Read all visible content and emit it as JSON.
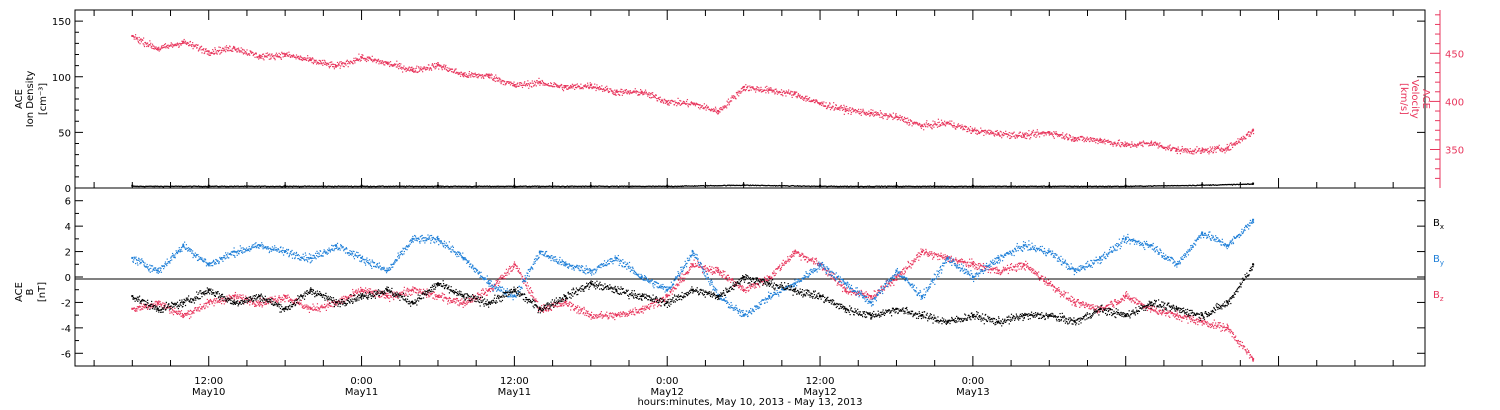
{
  "chart_data": [
    {
      "type": "scatter",
      "panel": "top",
      "ylabel": {
        "line1": "ACE",
        "line2": "Ion Density",
        "unit": "[cm⁻³]"
      },
      "ylabel_right": {
        "line1": "ACE",
        "line2": "Velocity",
        "unit": "[km/s]"
      },
      "ylim": [
        0,
        160
      ],
      "yticks": [
        "0",
        "50",
        "100",
        "150"
      ],
      "ylim_right": [
        310,
        495
      ],
      "yticks_right": [
        "350",
        "400",
        "450"
      ],
      "grid": false,
      "series": [
        {
          "name": "Density",
          "color": "#000000",
          "x_hours": [
            0,
            6,
            12,
            18,
            24,
            30,
            36,
            42,
            48,
            54,
            60,
            66,
            72,
            78,
            84,
            88
          ],
          "values": [
            2,
            2,
            2,
            2,
            2,
            2,
            2,
            2,
            3,
            2,
            2,
            2,
            2,
            2,
            3,
            4
          ]
        },
        {
          "name": "Velocity",
          "color": "#e8365d",
          "axis": "right",
          "x_hours": [
            0,
            2,
            4,
            6,
            8,
            10,
            12,
            14,
            16,
            18,
            20,
            22,
            24,
            26,
            28,
            30,
            32,
            34,
            36,
            38,
            40,
            42,
            44,
            46,
            48,
            50,
            52,
            54,
            56,
            58,
            60,
            62,
            64,
            66,
            68,
            70,
            72,
            74,
            76,
            78,
            80,
            82,
            84,
            86,
            88
          ],
          "values": [
            468,
            455,
            462,
            452,
            456,
            447,
            449,
            443,
            437,
            446,
            440,
            433,
            438,
            428,
            427,
            417,
            420,
            415,
            417,
            410,
            410,
            400,
            398,
            390,
            415,
            412,
            408,
            398,
            392,
            388,
            384,
            375,
            378,
            370,
            367,
            365,
            368,
            362,
            360,
            355,
            357,
            350,
            349,
            352,
            370
          ]
        }
      ]
    },
    {
      "type": "scatter",
      "panel": "bottom",
      "ylabel": {
        "line1": "ACE",
        "line2": "B",
        "unit": "[nT]"
      },
      "ylim": [
        -7,
        7
      ],
      "yticks": [
        "-6",
        "-4",
        "-2",
        "0",
        "2",
        "4",
        "6"
      ],
      "grid": false,
      "zero_line": true,
      "legend": "right",
      "series": [
        {
          "name": "Bx",
          "base": "B",
          "sub": "x",
          "color": "#000000",
          "x_hours": [
            0,
            2,
            4,
            6,
            8,
            10,
            12,
            14,
            16,
            18,
            20,
            22,
            24,
            26,
            28,
            30,
            32,
            34,
            36,
            38,
            40,
            42,
            44,
            46,
            48,
            50,
            52,
            54,
            56,
            58,
            60,
            62,
            64,
            66,
            68,
            70,
            72,
            74,
            76,
            78,
            80,
            82,
            84,
            86,
            88
          ],
          "values": [
            -1.5,
            -2.5,
            -2.0,
            -1.0,
            -2.0,
            -1.5,
            -2.5,
            -1.0,
            -2.0,
            -1.5,
            -1.0,
            -2.0,
            -0.5,
            -1.5,
            -2.0,
            -1.0,
            -2.5,
            -1.5,
            -0.5,
            -1.0,
            -1.5,
            -2.0,
            -1.0,
            -1.5,
            0.0,
            -0.5,
            -1.0,
            -1.5,
            -2.5,
            -3.0,
            -2.5,
            -3.0,
            -3.5,
            -3.0,
            -3.5,
            -3.0,
            -3.0,
            -3.5,
            -2.5,
            -3.0,
            -2.0,
            -2.5,
            -3.0,
            -2.0,
            1.0
          ]
        },
        {
          "name": "By",
          "base": "B",
          "sub": "y",
          "color": "#1e7fd8",
          "x_hours": [
            0,
            2,
            4,
            6,
            8,
            10,
            12,
            14,
            16,
            18,
            20,
            22,
            24,
            26,
            28,
            30,
            32,
            34,
            36,
            38,
            40,
            42,
            44,
            46,
            48,
            50,
            52,
            54,
            56,
            58,
            60,
            62,
            64,
            66,
            68,
            70,
            72,
            74,
            76,
            78,
            80,
            82,
            84,
            86,
            88
          ],
          "values": [
            1.5,
            0.5,
            2.5,
            1.0,
            2.0,
            2.5,
            2.0,
            1.5,
            2.5,
            1.5,
            0.5,
            3.0,
            3.0,
            1.5,
            -0.5,
            -1.5,
            2.0,
            1.0,
            0.5,
            1.5,
            0.0,
            -1.0,
            2.0,
            -1.5,
            -3.0,
            -1.5,
            -0.5,
            1.0,
            -0.5,
            -2.0,
            0.5,
            -1.5,
            1.5,
            0.0,
            1.5,
            2.5,
            2.0,
            0.5,
            1.5,
            3.0,
            2.5,
            1.0,
            3.5,
            2.5,
            4.5
          ]
        },
        {
          "name": "Bz",
          "base": "B",
          "sub": "z",
          "color": "#e8365d",
          "x_hours": [
            0,
            2,
            4,
            6,
            8,
            10,
            12,
            14,
            16,
            18,
            20,
            22,
            24,
            26,
            28,
            30,
            32,
            34,
            36,
            38,
            40,
            42,
            44,
            46,
            48,
            50,
            52,
            54,
            56,
            58,
            60,
            62,
            64,
            66,
            68,
            70,
            72,
            74,
            76,
            78,
            80,
            82,
            84,
            86,
            88
          ],
          "values": [
            -2.5,
            -2.0,
            -3.0,
            -2.0,
            -1.5,
            -2.0,
            -1.5,
            -2.5,
            -2.0,
            -1.0,
            -1.5,
            -1.0,
            -1.5,
            -2.0,
            -1.0,
            1.0,
            -2.5,
            -2.0,
            -3.0,
            -3.0,
            -2.5,
            -1.5,
            1.0,
            0.5,
            -1.0,
            0.0,
            2.0,
            1.0,
            -1.0,
            -1.5,
            0.0,
            2.0,
            1.5,
            1.0,
            0.5,
            1.0,
            -0.5,
            -2.0,
            -2.5,
            -1.5,
            -2.5,
            -3.0,
            -3.5,
            -4.0,
            -6.5
          ]
        }
      ]
    }
  ],
  "xaxis": {
    "major_ticks": [
      {
        "hours": 6,
        "time": "12:00",
        "date": "May10"
      },
      {
        "hours": 18,
        "time": "0:00",
        "date": "May11"
      },
      {
        "hours": 30,
        "time": "12:00",
        "date": "May11"
      },
      {
        "hours": 42,
        "time": "0:00",
        "date": "May12"
      },
      {
        "hours": 54,
        "time": "12:00",
        "date": "May12"
      },
      {
        "hours": 66,
        "time": "0:00",
        "date": "May13"
      }
    ],
    "label": "hours:minutes, May 10, 2013 - May 13, 2013"
  }
}
